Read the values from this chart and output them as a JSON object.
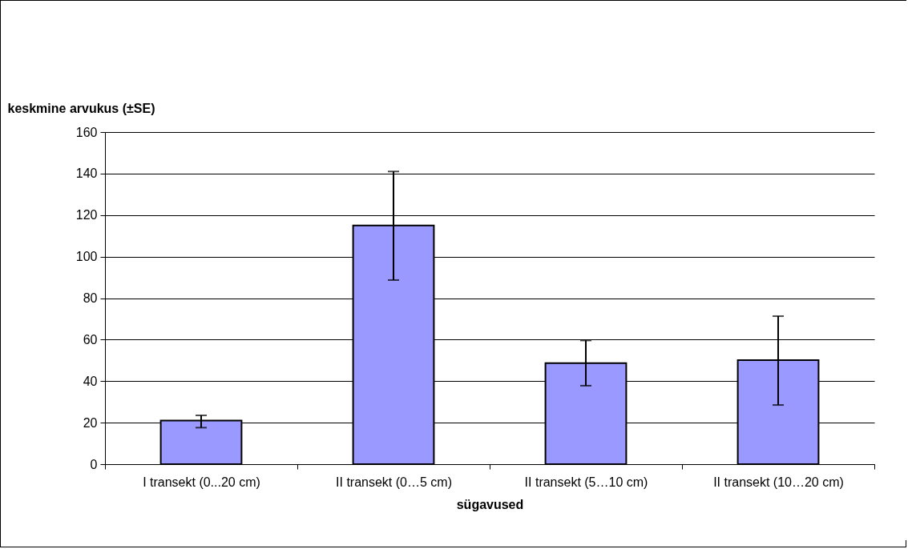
{
  "chart_data": {
    "type": "bar",
    "ylabel": "keskmine arvukus (±SE)",
    "xlabel": "sügavused",
    "categories": [
      "I transekt (0...20 cm)",
      "II transekt (0…5 cm)",
      "II transekt (5…10 cm)",
      "II transekt (10…20 cm)"
    ],
    "values": [
      21,
      115,
      48.7,
      50.1
    ],
    "errors": [
      [
        17.6,
        23.5
      ],
      [
        88.7,
        141
      ],
      [
        37.8,
        59.6
      ],
      [
        28.5,
        71.3
      ]
    ],
    "color": "#9999ff",
    "ylim": [
      0,
      160
    ],
    "yticks": [
      0,
      20,
      40,
      60,
      80,
      100,
      120,
      140,
      160
    ],
    "grid": "y"
  }
}
